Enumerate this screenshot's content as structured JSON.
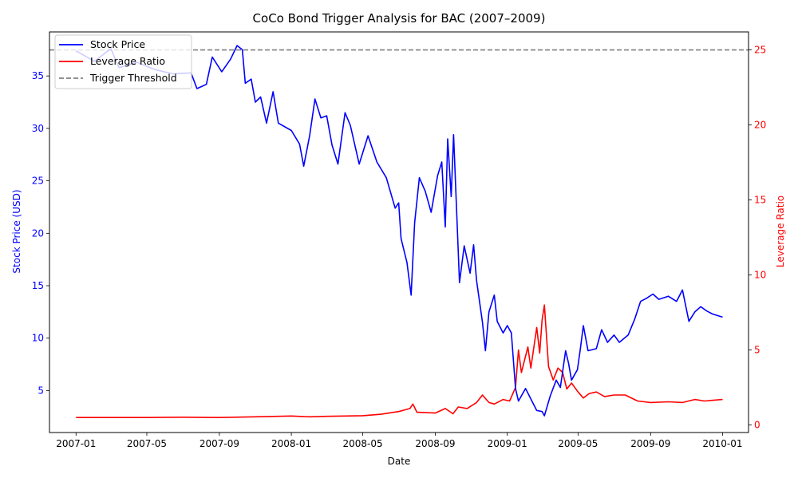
{
  "chart_data": {
    "type": "line",
    "title": "CoCo Bond Trigger Analysis for BAC (2007–2009)",
    "xlabel": "Date",
    "ylabel_left": "Stock Price (USD)",
    "ylabel_right": "Leverage Ratio",
    "x_range": [
      "2006-11-17",
      "2010-02-14"
    ],
    "y_left_range": [
      1.0,
      39.2
    ],
    "y_right_range": [
      -0.5,
      26.2
    ],
    "x_ticks": [
      "2007-01",
      "2007-05",
      "2007-09",
      "2008-01",
      "2008-05",
      "2008-09",
      "2009-01",
      "2009-05",
      "2009-09",
      "2010-01"
    ],
    "y_left_ticks": [
      5,
      10,
      15,
      20,
      25,
      30,
      35
    ],
    "y_right_ticks": [
      0,
      5,
      10,
      15,
      20,
      25
    ],
    "grid": false,
    "legend_position": "top-left",
    "colors": {
      "stock": "#0000ff",
      "leverage": "#ff0000",
      "threshold": "#808080",
      "left_axis_text": "#0000ff",
      "right_axis_text": "#ff0000"
    },
    "series": [
      {
        "name": "Stock Price",
        "axis": "left",
        "points": [
          [
            "2007-01-01",
            37.4
          ],
          [
            "2007-02-01",
            36.4
          ],
          [
            "2007-03-01",
            37.6
          ],
          [
            "2007-03-15",
            35.8
          ],
          [
            "2007-04-15",
            36.3
          ],
          [
            "2007-05-15",
            35.6
          ],
          [
            "2007-06-15",
            35.2
          ],
          [
            "2007-07-15",
            35.3
          ],
          [
            "2007-07-25",
            33.8
          ],
          [
            "2007-08-10",
            34.2
          ],
          [
            "2007-08-20",
            36.8
          ],
          [
            "2007-09-05",
            35.4
          ],
          [
            "2007-09-20",
            36.6
          ],
          [
            "2007-10-01",
            37.9
          ],
          [
            "2007-10-10",
            37.5
          ],
          [
            "2007-10-15",
            34.3
          ],
          [
            "2007-10-25",
            34.7
          ],
          [
            "2007-11-01",
            32.5
          ],
          [
            "2007-11-10",
            33.0
          ],
          [
            "2007-11-20",
            30.5
          ],
          [
            "2007-12-01",
            33.5
          ],
          [
            "2007-12-10",
            30.5
          ],
          [
            "2008-01-01",
            29.8
          ],
          [
            "2008-01-15",
            28.5
          ],
          [
            "2008-01-22",
            26.4
          ],
          [
            "2008-02-01",
            29.3
          ],
          [
            "2008-02-10",
            32.8
          ],
          [
            "2008-02-20",
            31.0
          ],
          [
            "2008-03-01",
            31.2
          ],
          [
            "2008-03-10",
            28.4
          ],
          [
            "2008-03-20",
            26.6
          ],
          [
            "2008-04-01",
            31.5
          ],
          [
            "2008-04-10",
            30.3
          ],
          [
            "2008-04-25",
            26.6
          ],
          [
            "2008-05-10",
            29.3
          ],
          [
            "2008-05-25",
            26.8
          ],
          [
            "2008-06-10",
            25.3
          ],
          [
            "2008-06-25",
            22.4
          ],
          [
            "2008-07-01",
            22.9
          ],
          [
            "2008-07-05",
            19.5
          ],
          [
            "2008-07-15",
            17.2
          ],
          [
            "2008-07-22",
            14.1
          ],
          [
            "2008-07-28",
            21.0
          ],
          [
            "2008-08-05",
            25.3
          ],
          [
            "2008-08-15",
            24.0
          ],
          [
            "2008-08-25",
            22.0
          ],
          [
            "2008-09-05",
            25.5
          ],
          [
            "2008-09-12",
            26.8
          ],
          [
            "2008-09-18",
            20.6
          ],
          [
            "2008-09-22",
            29.0
          ],
          [
            "2008-09-28",
            23.5
          ],
          [
            "2008-10-02",
            29.4
          ],
          [
            "2008-10-12",
            15.3
          ],
          [
            "2008-10-20",
            18.8
          ],
          [
            "2008-10-30",
            16.2
          ],
          [
            "2008-11-05",
            18.9
          ],
          [
            "2008-11-10",
            15.5
          ],
          [
            "2008-11-20",
            11.5
          ],
          [
            "2008-11-25",
            8.8
          ],
          [
            "2008-12-01",
            12.5
          ],
          [
            "2008-12-10",
            14.1
          ],
          [
            "2008-12-15",
            11.6
          ],
          [
            "2008-12-25",
            10.5
          ],
          [
            "2009-01-01",
            11.2
          ],
          [
            "2009-01-08",
            10.5
          ],
          [
            "2009-01-15",
            5.2
          ],
          [
            "2009-01-20",
            4.0
          ],
          [
            "2009-02-01",
            5.2
          ],
          [
            "2009-02-10",
            4.2
          ],
          [
            "2009-02-20",
            3.1
          ],
          [
            "2009-03-01",
            3.0
          ],
          [
            "2009-03-05",
            2.6
          ],
          [
            "2009-03-15",
            4.5
          ],
          [
            "2009-03-25",
            6.0
          ],
          [
            "2009-04-01",
            5.3
          ],
          [
            "2009-04-10",
            8.8
          ],
          [
            "2009-04-15",
            7.6
          ],
          [
            "2009-04-20",
            6.0
          ],
          [
            "2009-04-30",
            7.0
          ],
          [
            "2009-05-05",
            9.0
          ],
          [
            "2009-05-10",
            11.2
          ],
          [
            "2009-05-18",
            8.8
          ],
          [
            "2009-06-01",
            9.0
          ],
          [
            "2009-06-10",
            10.8
          ],
          [
            "2009-06-20",
            9.6
          ],
          [
            "2009-07-01",
            10.3
          ],
          [
            "2009-07-10",
            9.6
          ],
          [
            "2009-07-25",
            10.3
          ],
          [
            "2009-08-05",
            11.8
          ],
          [
            "2009-08-15",
            13.5
          ],
          [
            "2009-08-25",
            13.8
          ],
          [
            "2009-09-05",
            14.2
          ],
          [
            "2009-09-15",
            13.7
          ],
          [
            "2009-10-01",
            14.0
          ],
          [
            "2009-10-15",
            13.5
          ],
          [
            "2009-10-25",
            14.6
          ],
          [
            "2009-11-05",
            11.6
          ],
          [
            "2009-11-15",
            12.5
          ],
          [
            "2009-11-25",
            13.0
          ],
          [
            "2009-12-05",
            12.6
          ],
          [
            "2009-12-15",
            12.3
          ],
          [
            "2010-01-01",
            12.0
          ]
        ]
      },
      {
        "name": "Leverage Ratio",
        "axis": "right",
        "points": [
          [
            "2007-01-01",
            0.5
          ],
          [
            "2007-03-01",
            0.5
          ],
          [
            "2007-05-01",
            0.5
          ],
          [
            "2007-07-01",
            0.52
          ],
          [
            "2007-09-01",
            0.5
          ],
          [
            "2007-11-01",
            0.55
          ],
          [
            "2008-01-01",
            0.6
          ],
          [
            "2008-02-01",
            0.55
          ],
          [
            "2008-03-01",
            0.58
          ],
          [
            "2008-04-01",
            0.6
          ],
          [
            "2008-05-01",
            0.62
          ],
          [
            "2008-06-01",
            0.72
          ],
          [
            "2008-07-01",
            0.9
          ],
          [
            "2008-07-20",
            1.1
          ],
          [
            "2008-07-25",
            1.4
          ],
          [
            "2008-08-01",
            0.85
          ],
          [
            "2008-09-01",
            0.8
          ],
          [
            "2008-09-18",
            1.1
          ],
          [
            "2008-10-01",
            0.75
          ],
          [
            "2008-10-10",
            1.2
          ],
          [
            "2008-10-25",
            1.1
          ],
          [
            "2008-11-10",
            1.5
          ],
          [
            "2008-11-20",
            2.0
          ],
          [
            "2008-12-01",
            1.5
          ],
          [
            "2008-12-10",
            1.4
          ],
          [
            "2008-12-25",
            1.7
          ],
          [
            "2009-01-05",
            1.6
          ],
          [
            "2009-01-15",
            2.5
          ],
          [
            "2009-01-20",
            5.0
          ],
          [
            "2009-01-25",
            3.5
          ],
          [
            "2009-02-05",
            5.2
          ],
          [
            "2009-02-10",
            3.8
          ],
          [
            "2009-02-20",
            6.5
          ],
          [
            "2009-02-25",
            4.8
          ],
          [
            "2009-03-01",
            7.0
          ],
          [
            "2009-03-05",
            8.0
          ],
          [
            "2009-03-12",
            3.9
          ],
          [
            "2009-03-20",
            3.0
          ],
          [
            "2009-03-28",
            3.8
          ],
          [
            "2009-04-05",
            3.5
          ],
          [
            "2009-04-12",
            2.4
          ],
          [
            "2009-04-20",
            2.8
          ],
          [
            "2009-05-01",
            2.2
          ],
          [
            "2009-05-10",
            1.8
          ],
          [
            "2009-05-20",
            2.1
          ],
          [
            "2009-06-01",
            2.2
          ],
          [
            "2009-06-15",
            1.9
          ],
          [
            "2009-07-01",
            2.0
          ],
          [
            "2009-07-20",
            2.0
          ],
          [
            "2009-08-10",
            1.6
          ],
          [
            "2009-09-01",
            1.5
          ],
          [
            "2009-10-01",
            1.55
          ],
          [
            "2009-10-25",
            1.5
          ],
          [
            "2009-11-15",
            1.7
          ],
          [
            "2009-12-01",
            1.6
          ],
          [
            "2010-01-01",
            1.7
          ]
        ]
      },
      {
        "name": "Trigger Threshold",
        "axis": "right",
        "style": "dashed",
        "value": 25
      }
    ]
  }
}
